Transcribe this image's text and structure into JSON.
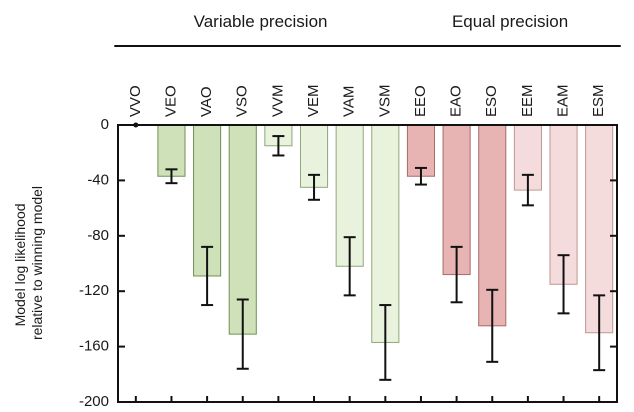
{
  "chart_data": {
    "type": "bar",
    "title": "",
    "xlabel": "",
    "ylabel_lines": [
      "Model log likelihood",
      "relative to winning model"
    ],
    "ylim": [
      -200,
      0
    ],
    "yticks": [
      0,
      -40,
      -80,
      -120,
      -160,
      -200
    ],
    "ytick_labels": [
      "0",
      "-40",
      "-80",
      "-120",
      "-160",
      "-200"
    ],
    "grid": false,
    "groups": [
      {
        "label": "Variable precision",
        "start": 0,
        "end": 7
      },
      {
        "label": "Equal precision",
        "start": 8,
        "end": 13
      }
    ],
    "categories": [
      "VVO",
      "VEO",
      "VAO",
      "VSO",
      "VVM",
      "VEM",
      "VAM",
      "VSM",
      "EEO",
      "EAO",
      "ESO",
      "EEM",
      "EAM",
      "ESM"
    ],
    "values": [
      0,
      -37,
      -109,
      -151,
      -15,
      -45,
      -102,
      -157,
      -37,
      -108,
      -145,
      -47,
      -115,
      -150
    ],
    "error_bars": [
      0,
      5,
      21,
      25,
      7,
      9,
      21,
      27,
      6,
      20,
      26,
      11,
      21,
      27
    ],
    "colors": [
      "#cfe1b9",
      "#cfe1b9",
      "#cfe1b9",
      "#cfe1b9",
      "#e9f2dd",
      "#e9f2dd",
      "#e9f2dd",
      "#e9f2dd",
      "#e7b3b3",
      "#e7b3b3",
      "#e7b3b3",
      "#f4dcdc",
      "#f4dcdc",
      "#f4dcdc"
    ],
    "border_colors": [
      "#6f8f57",
      "#6f8f57",
      "#6f8f57",
      "#6f8f57",
      "#8da87a",
      "#8da87a",
      "#8da87a",
      "#8da87a",
      "#a76b6b",
      "#a76b6b",
      "#a76b6b",
      "#c19494",
      "#c19494",
      "#c19494"
    ]
  }
}
